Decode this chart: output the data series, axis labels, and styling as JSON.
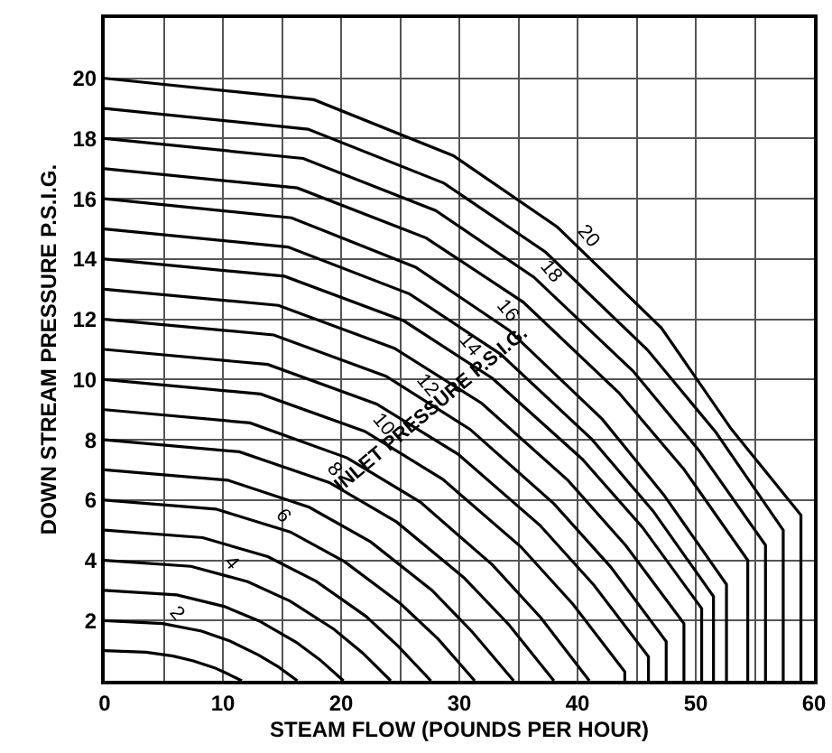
{
  "chart_data": {
    "type": "line",
    "xlabel": "STEAM FLOW (POUNDS PER HOUR)",
    "ylabel": "DOWN STREAM PRESSURE P.S.I.G.",
    "xlim": [
      0,
      60
    ],
    "ylim": [
      0,
      22
    ],
    "xticks": [
      0,
      {
        "value": 5,
        "label": null
      },
      10,
      {
        "value": 15,
        "label": null
      },
      20,
      {
        "value": 25,
        "label": null
      },
      30,
      {
        "value": 35,
        "label": null
      },
      40,
      {
        "value": 45,
        "label": null
      },
      50,
      {
        "value": 55,
        "label": null
      },
      60
    ],
    "yticks": [
      {
        "value": 0,
        "label": null
      },
      2,
      4,
      6,
      8,
      10,
      12,
      14,
      16,
      18,
      20,
      {
        "value": 22,
        "label": null
      }
    ],
    "grid": true,
    "legend": false,
    "marker": "none",
    "line_style": "solid",
    "annotations": [
      "INLET PRESSURE P.S.I.G."
    ],
    "series": [
      {
        "color": "#000000",
        "x": [
          0,
          3.5,
          5.8,
          7.5,
          9.3,
          10.4,
          11.6
        ],
        "values": [
          1,
          0.95,
          0.82,
          0.66,
          0.43,
          0.23,
          0
        ]
      },
      {
        "name": "2",
        "color": "#000000",
        "x": [
          0,
          4.9,
          8.2,
          10.6,
          13,
          14.7,
          16.3
        ],
        "values": [
          2,
          1.9,
          1.65,
          1.32,
          0.86,
          0.46,
          0
        ]
      },
      {
        "color": "#000000",
        "x": [
          0,
          6.1,
          10.1,
          13.1,
          16.2,
          18.2,
          20.2
        ],
        "values": [
          3,
          2.85,
          2.47,
          1.98,
          1.28,
          0.7,
          0
        ]
      },
      {
        "name": "4",
        "color": "#000000",
        "x": [
          0,
          7.3,
          12.1,
          15.7,
          19.4,
          21.8,
          24.2
        ],
        "values": [
          4,
          3.8,
          3.29,
          2.64,
          1.71,
          0.93,
          0
        ]
      },
      {
        "color": "#000000",
        "x": [
          0,
          8.3,
          13.8,
          17.9,
          22.1,
          24.8,
          27.6
        ],
        "values": [
          5,
          4.75,
          4.12,
          3.3,
          2.14,
          1.16,
          0
        ]
      },
      {
        "name": "6",
        "color": "#000000",
        "x": [
          0,
          9.4,
          15.7,
          20.3,
          25,
          28.2,
          31.3
        ],
        "values": [
          6,
          5.7,
          4.94,
          3.95,
          2.57,
          1.39,
          0
        ]
      },
      {
        "color": "#000000",
        "x": [
          0,
          10.4,
          17.3,
          22.5,
          27.7,
          31.1,
          34.6
        ],
        "values": [
          7,
          6.66,
          5.76,
          4.61,
          3,
          1.62,
          0
        ]
      },
      {
        "name": "8",
        "color": "#000000",
        "x": [
          0,
          11.4,
          19,
          24.7,
          30.4,
          34.2,
          38
        ],
        "values": [
          8,
          7.6,
          6.58,
          5.27,
          3.42,
          1.86,
          0
        ]
      },
      {
        "color": "#000000",
        "x": [
          0,
          12.3,
          20.5,
          26.7,
          32.8,
          36.9,
          41
        ],
        "values": [
          9,
          8.56,
          7.4,
          5.93,
          3.85,
          2.09,
          0
        ]
      },
      {
        "name": "10",
        "color": "#000000",
        "x": [
          0,
          13.2,
          22,
          28.6,
          35.2,
          39.6,
          44,
          44
        ],
        "values": [
          10,
          9.52,
          8.28,
          6.69,
          4.45,
          2.55,
          0.3,
          0
        ]
      },
      {
        "color": "#000000",
        "x": [
          0,
          13.8,
          23,
          29.9,
          36.8,
          41.4,
          46,
          46
        ],
        "values": [
          11,
          10.5,
          9.19,
          7.52,
          5.17,
          3.17,
          0.8,
          0
        ]
      },
      {
        "name": "12",
        "color": "#000000",
        "x": [
          0,
          14.3,
          23.8,
          30.9,
          38,
          42.8,
          47.5,
          47.5
        ],
        "values": [
          12,
          11.48,
          10.11,
          8.35,
          5.88,
          3.78,
          1.3,
          0
        ]
      },
      {
        "color": "#000000",
        "x": [
          0,
          14.7,
          24.5,
          31.9,
          39.2,
          44.1,
          49,
          49
        ],
        "values": [
          13,
          12.46,
          11.04,
          9.21,
          6.65,
          4.48,
          1.9,
          0
        ]
      },
      {
        "name": "14",
        "color": "#000000",
        "x": [
          0,
          15.2,
          25.3,
          32.8,
          40.4,
          45.5,
          50.5,
          50.5
        ],
        "values": [
          14,
          13.43,
          11.95,
          10.04,
          7.36,
          5.09,
          2.4,
          0
        ]
      },
      {
        "color": "#000000",
        "x": [
          0,
          15.5,
          25.8,
          33.5,
          41.2,
          46.4,
          51.5,
          51.5
        ],
        "values": [
          15,
          14.4,
          12.84,
          10.84,
          8.02,
          5.63,
          2.8,
          0
        ]
      },
      {
        "name": "16",
        "color": "#000000",
        "x": [
          0,
          15.8,
          26.3,
          34.2,
          42.1,
          47.3,
          52.6,
          52.6
        ],
        "values": [
          16,
          15.37,
          13.73,
          11.64,
          8.68,
          6.17,
          3.2,
          0
        ]
      },
      {
        "color": "#000000",
        "x": [
          0,
          16.3,
          27.2,
          35.4,
          43.5,
          49,
          54.4,
          54.4
        ],
        "values": [
          17,
          16.36,
          14.7,
          12.57,
          9.56,
          7.02,
          4,
          0
        ]
      },
      {
        "name": "18",
        "color": "#000000",
        "x": [
          0,
          16.8,
          28,
          36.3,
          44.7,
          50.3,
          55.9,
          55.9
        ],
        "values": [
          18,
          17.34,
          15.61,
          13.4,
          10.28,
          7.63,
          4.5,
          0
        ]
      },
      {
        "color": "#000000",
        "x": [
          0,
          17.2,
          28.7,
          37.3,
          45.9,
          51.7,
          57.4,
          57.4
        ],
        "values": [
          19,
          18.31,
          16.52,
          14.23,
          10.99,
          8.25,
          5,
          0
        ]
      },
      {
        "name": "20",
        "color": "#000000",
        "x": [
          0,
          17.7,
          29.5,
          38.3,
          47.1,
          53,
          58.9,
          58.9
        ],
        "values": [
          20,
          19.29,
          17.43,
          15.06,
          11.71,
          8.36,
          5.5,
          0
        ]
      }
    ]
  }
}
